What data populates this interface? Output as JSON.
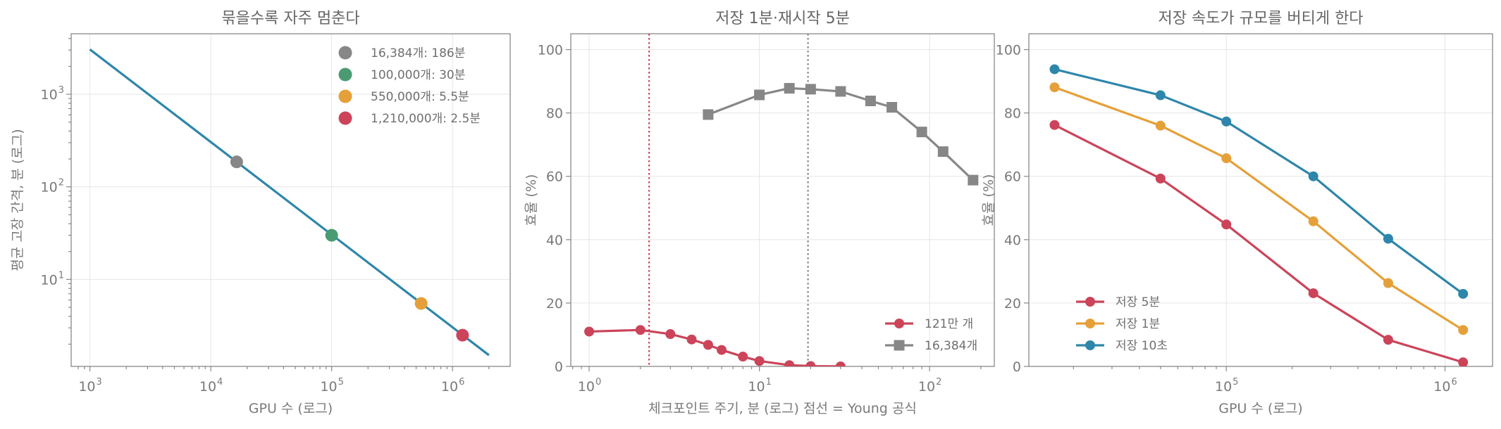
{
  "colors": {
    "gray": "#878787",
    "green": "#4a9a72",
    "orange": "#e6a03a",
    "red": "#cc4459",
    "blue": "#2e86ab"
  },
  "chart_data": [
    {
      "type": "line",
      "title": "묶을수록 자주 멈춘다",
      "xlabel": "GPU 수 (로그)",
      "ylabel": "평균 고장 간격, 분 (로그)",
      "xscale": "log",
      "yscale": "log",
      "xlim": [
        700,
        3000000
      ],
      "ylim": [
        1.15,
        4500
      ],
      "grid": true,
      "legend_loc": "top-right",
      "xticks": [
        {
          "value": 1000,
          "base": "10",
          "exp": "3"
        },
        {
          "value": 10000,
          "base": "10",
          "exp": "4"
        },
        {
          "value": 100000,
          "base": "10",
          "exp": "5"
        },
        {
          "value": 1000000,
          "base": "10",
          "exp": "6"
        }
      ],
      "yticks": [
        {
          "value": 10,
          "base": "10",
          "exp": "1"
        },
        {
          "value": 100,
          "base": "10",
          "exp": "2"
        },
        {
          "value": 1000,
          "base": "10",
          "exp": "3"
        }
      ],
      "line": {
        "color": "#2e86ab",
        "x": [
          1000,
          2000000
        ],
        "y": [
          3050,
          1.52
        ]
      },
      "points": [
        {
          "label": "16,384개: 186분",
          "x": 16384,
          "y": 186,
          "color": "#878787"
        },
        {
          "label": "100,000개: 30분",
          "x": 100000,
          "y": 30,
          "color": "#4a9a72"
        },
        {
          "label": "550,000개: 5.5분",
          "x": 550000,
          "y": 5.5,
          "color": "#e6a03a"
        },
        {
          "label": "1,210,000개: 2.5분",
          "x": 1210000,
          "y": 2.5,
          "color": "#cc4459"
        }
      ]
    },
    {
      "type": "line",
      "title": "저장 1분·재시작 5분",
      "xlabel": "체크포인트 주기, 분 (로그)  점선 = Young 공식",
      "ylabel": "효율 (%)",
      "xscale": "log",
      "xlim": [
        0.78,
        240
      ],
      "ylim": [
        0,
        105
      ],
      "grid": true,
      "legend_loc": "bottom-right",
      "xticks": [
        {
          "value": 1,
          "base": "10",
          "exp": "0"
        },
        {
          "value": 10,
          "base": "10",
          "exp": "1"
        },
        {
          "value": 100,
          "base": "10",
          "exp": "2"
        }
      ],
      "yticks": [
        0,
        20,
        40,
        60,
        80,
        100
      ],
      "vlines": [
        {
          "x": 2.25,
          "color": "#cc4459"
        },
        {
          "x": 19.3,
          "color": "#878787"
        }
      ],
      "series": [
        {
          "name": "121만 개",
          "color": "#cc4459",
          "marker": "circle",
          "x": [
            1,
            2,
            3,
            4,
            5,
            6,
            8,
            10,
            15,
            20,
            30
          ],
          "y": [
            11,
            11.5,
            10.2,
            8.5,
            6.8,
            5.2,
            3.1,
            1.7,
            0.4,
            0.1,
            0
          ]
        },
        {
          "name": "16,384개",
          "color": "#878787",
          "marker": "square",
          "x": [
            5,
            10,
            15,
            20,
            30,
            45,
            60,
            90,
            120,
            180
          ],
          "y": [
            79.5,
            85.7,
            87.8,
            87.5,
            86.8,
            83.8,
            81.8,
            74,
            67.8,
            58.8
          ]
        }
      ]
    },
    {
      "type": "line",
      "title": "저장 속도가 규모를 버티게 한다",
      "xlabel": "GPU 수 (로그)",
      "ylabel": "효율 (%)",
      "xscale": "log",
      "xlim": [
        12500,
        1650000
      ],
      "ylim": [
        0,
        105
      ],
      "grid": true,
      "legend_loc": "bottom-left",
      "xticks": [
        {
          "value": 100000,
          "base": "10",
          "exp": "5"
        },
        {
          "value": 1000000,
          "base": "10",
          "exp": "6"
        }
      ],
      "yticks": [
        0,
        20,
        40,
        60,
        80,
        100
      ],
      "series": [
        {
          "name": "저장 5분",
          "color": "#cc4459",
          "marker": "circle",
          "x": [
            16384,
            50000,
            100000,
            250000,
            550000,
            1210000
          ],
          "y": [
            76.2,
            59.3,
            44.8,
            23.1,
            8.4,
            1.3
          ]
        },
        {
          "name": "저장 1분",
          "color": "#e6a03a",
          "marker": "circle",
          "x": [
            16384,
            50000,
            100000,
            250000,
            550000,
            1210000
          ],
          "y": [
            88.1,
            76,
            65.7,
            45.8,
            26.3,
            11.5
          ]
        },
        {
          "name": "저장 10초",
          "color": "#2e86ab",
          "marker": "circle",
          "x": [
            16384,
            50000,
            100000,
            250000,
            550000,
            1210000
          ],
          "y": [
            93.8,
            85.6,
            77.3,
            60,
            40.3,
            22.9
          ]
        }
      ]
    }
  ]
}
